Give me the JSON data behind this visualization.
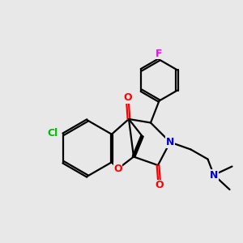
{
  "background_color": "#e8e8e8",
  "bond_color": "#000000",
  "bond_width": 1.6,
  "atom_colors": {
    "O": "#ff0000",
    "N": "#0000cc",
    "Cl": "#00bb00",
    "F": "#ff00ff"
  },
  "figsize": [
    3.0,
    3.0
  ],
  "dpi": 100,
  "xlim": [
    0,
    10
  ],
  "ylim": [
    0,
    10
  ]
}
